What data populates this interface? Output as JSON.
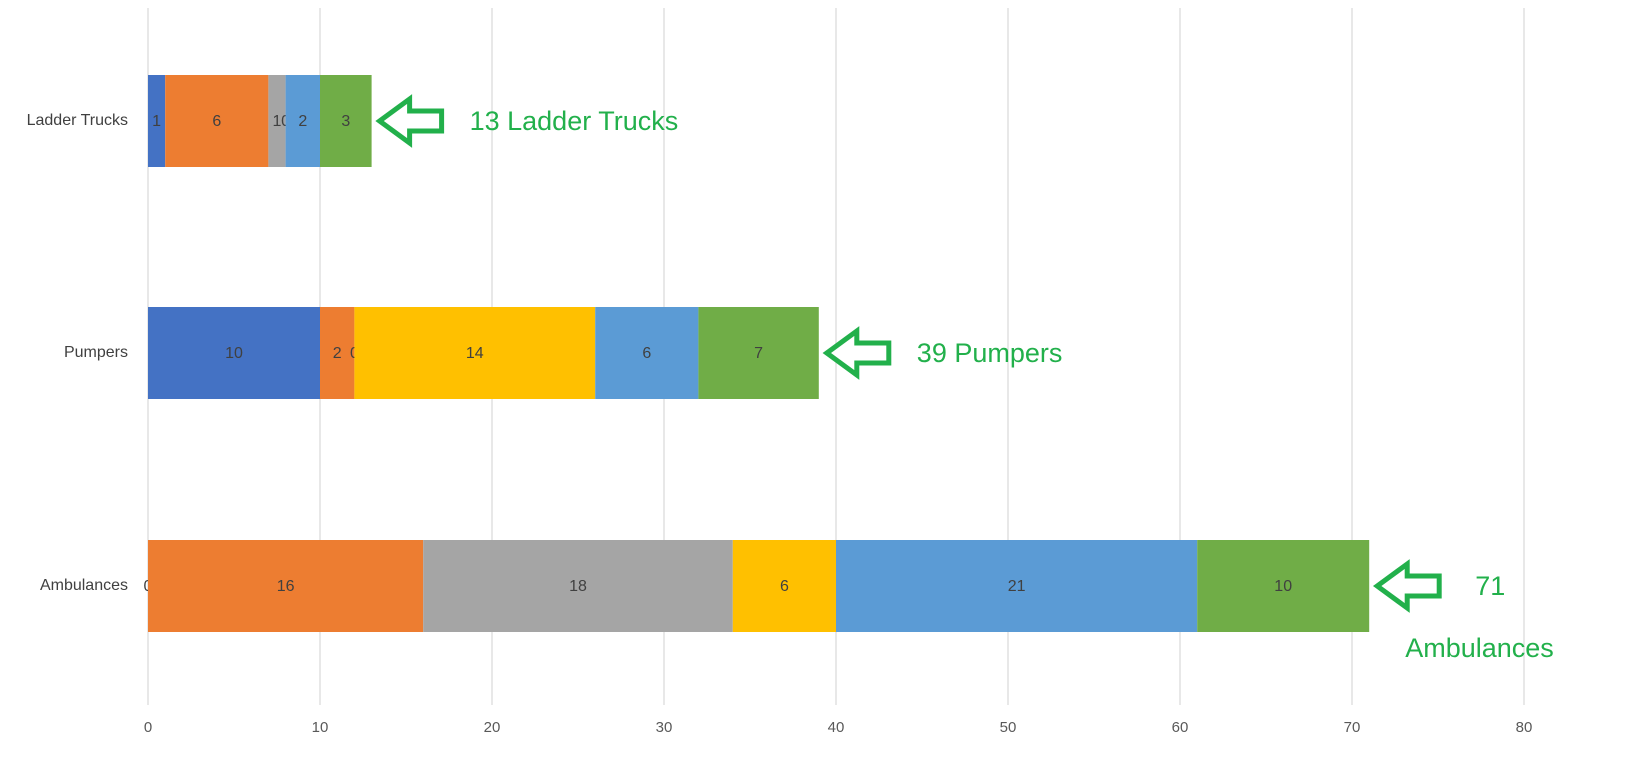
{
  "chart_data": {
    "type": "stacked-barh",
    "categories": [
      "Ladder Trucks",
      "Pumpers",
      "Ambulances"
    ],
    "series": [
      {
        "color": "#4472c4",
        "values": [
          1,
          10,
          0
        ]
      },
      {
        "color": "#ed7d31",
        "values": [
          6,
          2,
          16
        ]
      },
      {
        "color": "#a5a5a5",
        "values": [
          1,
          0,
          18
        ]
      },
      {
        "color": "#ffc000",
        "values": [
          0,
          14,
          6
        ]
      },
      {
        "color": "#5b9bd5",
        "values": [
          2,
          6,
          21
        ]
      },
      {
        "color": "#70ad47",
        "values": [
          3,
          7,
          10
        ]
      }
    ],
    "annotations": [
      "13 Ladder Trucks",
      "39 Pumpers",
      "71 Ambulances"
    ],
    "annotation_color": "#22b04b",
    "xlim": [
      0,
      80
    ],
    "xticks": [
      0,
      10,
      20,
      30,
      40,
      50,
      60,
      70,
      80
    ],
    "grid": true
  }
}
